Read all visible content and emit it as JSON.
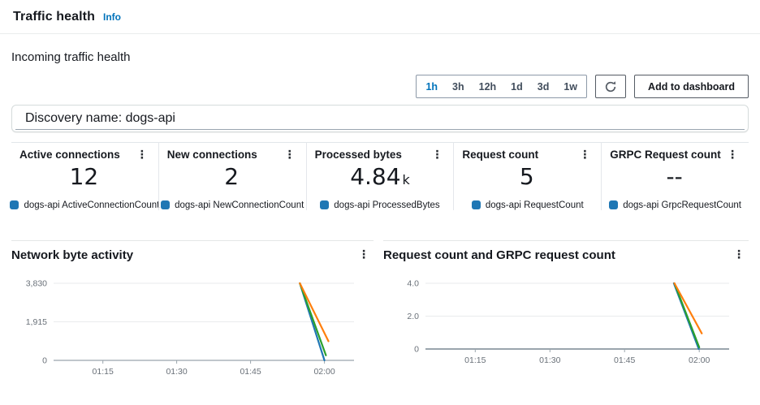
{
  "header": {
    "title": "Traffic health",
    "info_label": "Info"
  },
  "section": {
    "title": "Incoming traffic health"
  },
  "controls": {
    "time_ranges": [
      "1h",
      "3h",
      "12h",
      "1d",
      "3d",
      "1w"
    ],
    "selected_time_range": "1h",
    "add_to_dashboard_label": "Add to dashboard"
  },
  "discovery": {
    "label": "Discovery name: dogs-api"
  },
  "icons": {
    "kebab": "⋮"
  },
  "colors": {
    "accent": "#0073bb",
    "legend_marker": "#1f77b4",
    "line_blue": "#1f77b4",
    "line_orange": "#ff7f0e",
    "line_green": "#2ca02c"
  },
  "metric_cards": [
    {
      "title": "Active connections",
      "value": "12",
      "unit": "",
      "legend": "dogs-api ActiveConnectionCount"
    },
    {
      "title": "New connections",
      "value": "2",
      "unit": "",
      "legend": "dogs-api NewConnectionCount"
    },
    {
      "title": "Processed bytes",
      "value": "4.84",
      "unit": "k",
      "legend": "dogs-api ProcessedBytes"
    },
    {
      "title": "Request count",
      "value": "5",
      "unit": "",
      "legend": "dogs-api RequestCount"
    },
    {
      "title": "GRPC Request count",
      "value": "--",
      "unit": "",
      "legend": "dogs-api GrpcRequestCount"
    }
  ],
  "chart_data": [
    {
      "type": "line",
      "title": "Network byte activity",
      "x_tick_minutes": [
        75,
        90,
        105,
        120
      ],
      "x_tick_labels": [
        "01:15",
        "01:30",
        "01:45",
        "02:00"
      ],
      "x_domain_minutes": [
        65,
        126
      ],
      "ylim": [
        0,
        3830
      ],
      "y_ticks": [
        {
          "v": 3830,
          "label": "3,830"
        },
        {
          "v": 1915,
          "label": "1,915"
        },
        {
          "v": 0,
          "label": "0"
        }
      ],
      "grid": true,
      "legend_position": "none",
      "series": [
        {
          "name": "blue-series",
          "color": "#1f77b4",
          "points": [
            {
              "m": 115,
              "v": 3830
            },
            {
              "m": 120,
              "v": 0
            }
          ]
        },
        {
          "name": "green-series",
          "color": "#2ca02c",
          "points": [
            {
              "m": 115,
              "v": 3830
            },
            {
              "m": 120.3,
              "v": 250
            }
          ]
        },
        {
          "name": "orange-series",
          "color": "#ff7f0e",
          "points": [
            {
              "m": 115,
              "v": 3830
            },
            {
              "m": 120.8,
              "v": 950
            }
          ]
        }
      ]
    },
    {
      "type": "line",
      "title": "Request count and GRPC request count",
      "x_tick_minutes": [
        75,
        90,
        105,
        120
      ],
      "x_tick_labels": [
        "01:15",
        "01:30",
        "01:45",
        "02:00"
      ],
      "x_domain_minutes": [
        65,
        126
      ],
      "ylim": [
        0,
        4
      ],
      "y_ticks": [
        {
          "v": 4,
          "label": "4.0"
        },
        {
          "v": 2,
          "label": "2.0"
        },
        {
          "v": 0,
          "label": "0"
        }
      ],
      "grid": true,
      "legend_position": "none",
      "series": [
        {
          "name": "blue-series",
          "color": "#1f77b4",
          "points": [
            {
              "m": 114.9,
              "v": 4
            },
            {
              "m": 119.9,
              "v": 0
            }
          ]
        },
        {
          "name": "green-series",
          "color": "#2ca02c",
          "points": [
            {
              "m": 115,
              "v": 4
            },
            {
              "m": 120,
              "v": 0.1
            }
          ]
        },
        {
          "name": "orange-series",
          "color": "#ff7f0e",
          "points": [
            {
              "m": 115,
              "v": 4
            },
            {
              "m": 120.5,
              "v": 0.95
            }
          ]
        }
      ]
    }
  ]
}
